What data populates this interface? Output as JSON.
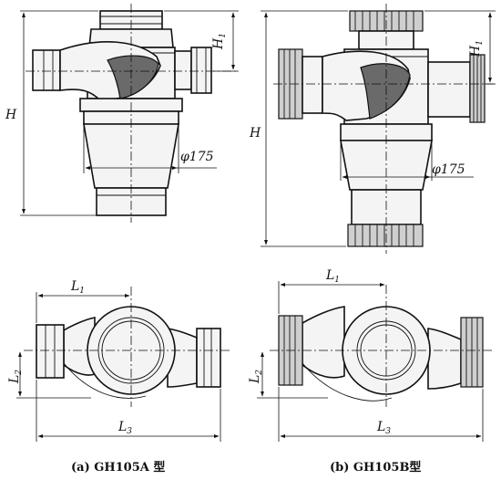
{
  "labels": {
    "height": "H",
    "height_top": "H",
    "height_top_sub": "1",
    "diameter": "φ175",
    "length1": "L",
    "length1_sub": "1",
    "length2": "L",
    "length2_sub": "2",
    "length3": "L",
    "length3_sub": "3"
  },
  "captions": {
    "a": "(a) GH105A 型",
    "b": "(b)  GH105B型"
  }
}
